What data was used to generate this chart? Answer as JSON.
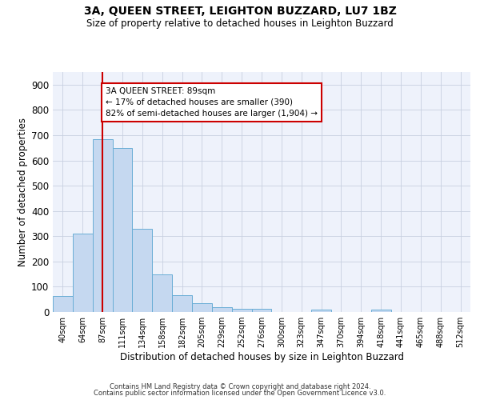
{
  "title": "3A, QUEEN STREET, LEIGHTON BUZZARD, LU7 1BZ",
  "subtitle": "Size of property relative to detached houses in Leighton Buzzard",
  "xlabel": "Distribution of detached houses by size in Leighton Buzzard",
  "ylabel": "Number of detached properties",
  "bar_values": [
    63,
    310,
    685,
    650,
    330,
    150,
    65,
    35,
    20,
    12,
    12,
    0,
    0,
    10,
    0,
    0,
    10,
    0,
    0,
    0,
    0
  ],
  "bar_labels": [
    "40sqm",
    "64sqm",
    "87sqm",
    "111sqm",
    "134sqm",
    "158sqm",
    "182sqm",
    "205sqm",
    "229sqm",
    "252sqm",
    "276sqm",
    "300sqm",
    "323sqm",
    "347sqm",
    "370sqm",
    "394sqm",
    "418sqm",
    "441sqm",
    "465sqm",
    "488sqm",
    "512sqm"
  ],
  "bar_color": "#c5d8f0",
  "bar_edge_color": "#6aaed6",
  "vline_color": "#cc0000",
  "annotation_box_text": "3A QUEEN STREET: 89sqm\n← 17% of detached houses are smaller (390)\n82% of semi-detached houses are larger (1,904) →",
  "annotation_box_color": "#cc0000",
  "ylim": [
    0,
    950
  ],
  "yticks": [
    0,
    100,
    200,
    300,
    400,
    500,
    600,
    700,
    800,
    900
  ],
  "bg_color": "#eef2fb",
  "footer_line1": "Contains HM Land Registry data © Crown copyright and database right 2024.",
  "footer_line2": "Contains public sector information licensed under the Open Government Licence v3.0.",
  "title_fontsize": 10,
  "subtitle_fontsize": 8.5
}
